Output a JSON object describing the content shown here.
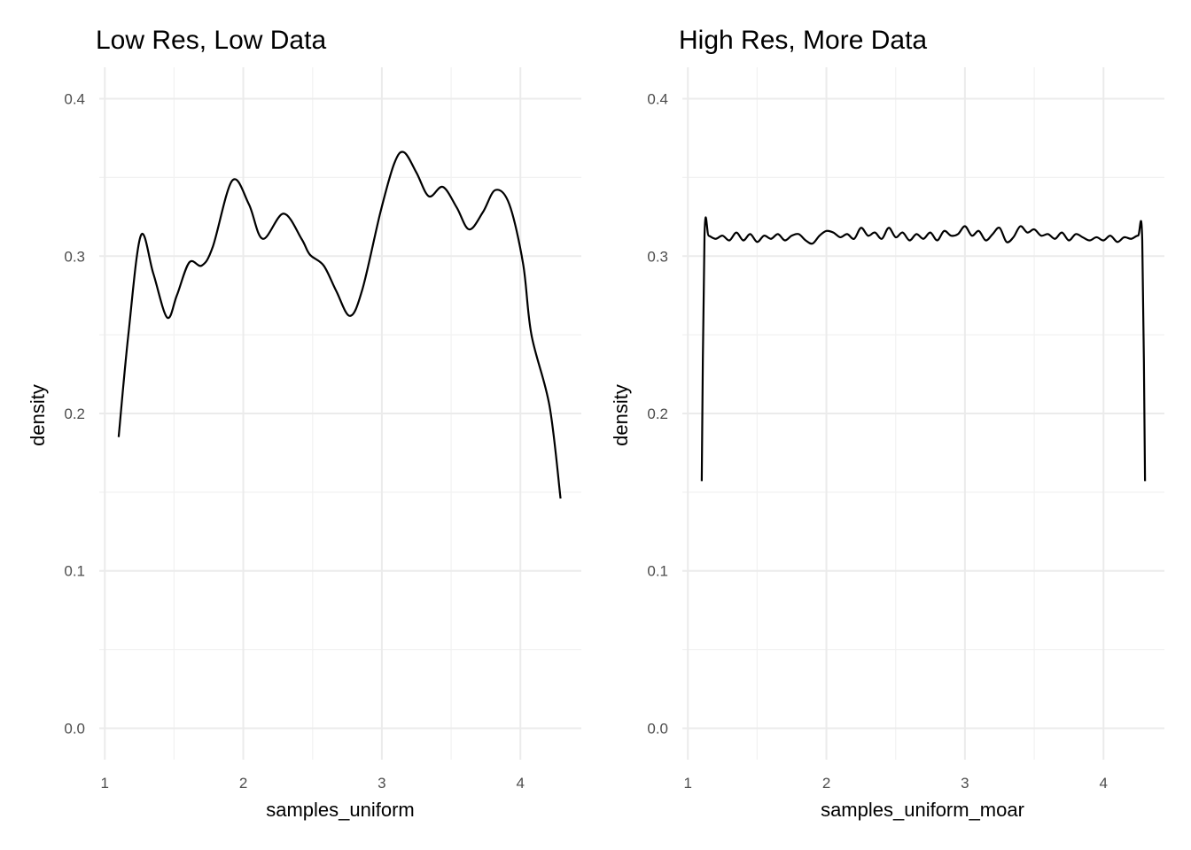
{
  "chart_data": [
    {
      "type": "line",
      "title": "Low Res, Low Data",
      "xlabel": "samples_uniform",
      "ylabel": "density",
      "xlim": [
        0.96,
        4.44
      ],
      "ylim": [
        -0.02,
        0.42
      ],
      "xticks": [
        1,
        2,
        3,
        4
      ],
      "yticks": [
        "0.0",
        "0.1",
        "0.2",
        "0.3",
        "0.4"
      ],
      "grid": true,
      "x": [
        1.1,
        1.17,
        1.26,
        1.35,
        1.45,
        1.52,
        1.61,
        1.7,
        1.78,
        1.92,
        2.04,
        2.14,
        2.29,
        2.42,
        2.48,
        2.58,
        2.67,
        2.77,
        2.86,
        2.99,
        3.09,
        3.16,
        3.25,
        3.34,
        3.44,
        3.54,
        3.63,
        3.73,
        3.82,
        3.92,
        4.02,
        4.08,
        4.21,
        4.29
      ],
      "y": [
        0.185,
        0.25,
        0.313,
        0.289,
        0.261,
        0.275,
        0.296,
        0.294,
        0.306,
        0.348,
        0.333,
        0.311,
        0.327,
        0.311,
        0.301,
        0.294,
        0.278,
        0.262,
        0.279,
        0.328,
        0.359,
        0.366,
        0.353,
        0.338,
        0.344,
        0.331,
        0.317,
        0.328,
        0.342,
        0.333,
        0.295,
        0.25,
        0.205,
        0.146
      ]
    },
    {
      "type": "line",
      "title": "High Res, More Data",
      "xlabel": "samples_uniform_moar",
      "ylabel": "density",
      "xlim": [
        0.96,
        4.44
      ],
      "ylim": [
        -0.02,
        0.42
      ],
      "xticks": [
        1,
        2,
        3,
        4
      ],
      "yticks": [
        "0.0",
        "0.1",
        "0.2",
        "0.3",
        "0.4"
      ],
      "grid": true,
      "x": [
        1.1,
        1.12,
        1.15,
        1.2,
        1.25,
        1.3,
        1.35,
        1.4,
        1.45,
        1.5,
        1.55,
        1.6,
        1.65,
        1.7,
        1.75,
        1.8,
        1.85,
        1.9,
        1.95,
        2.0,
        2.05,
        2.1,
        2.15,
        2.2,
        2.25,
        2.3,
        2.35,
        2.4,
        2.45,
        2.5,
        2.55,
        2.6,
        2.65,
        2.7,
        2.75,
        2.8,
        2.85,
        2.9,
        2.95,
        3.0,
        3.05,
        3.1,
        3.15,
        3.2,
        3.25,
        3.3,
        3.35,
        3.4,
        3.45,
        3.5,
        3.55,
        3.6,
        3.65,
        3.7,
        3.75,
        3.8,
        3.85,
        3.9,
        3.95,
        4.0,
        4.05,
        4.1,
        4.15,
        4.2,
        4.25,
        4.28,
        4.3
      ],
      "y": [
        0.157,
        0.313,
        0.313,
        0.311,
        0.313,
        0.31,
        0.315,
        0.31,
        0.314,
        0.309,
        0.313,
        0.311,
        0.314,
        0.31,
        0.313,
        0.314,
        0.31,
        0.308,
        0.313,
        0.316,
        0.315,
        0.312,
        0.314,
        0.311,
        0.318,
        0.313,
        0.315,
        0.311,
        0.318,
        0.312,
        0.315,
        0.31,
        0.314,
        0.311,
        0.315,
        0.31,
        0.316,
        0.313,
        0.314,
        0.319,
        0.313,
        0.316,
        0.31,
        0.314,
        0.318,
        0.309,
        0.312,
        0.319,
        0.315,
        0.317,
        0.313,
        0.314,
        0.311,
        0.315,
        0.31,
        0.314,
        0.312,
        0.31,
        0.312,
        0.31,
        0.313,
        0.309,
        0.312,
        0.311,
        0.313,
        0.31,
        0.157
      ]
    }
  ]
}
